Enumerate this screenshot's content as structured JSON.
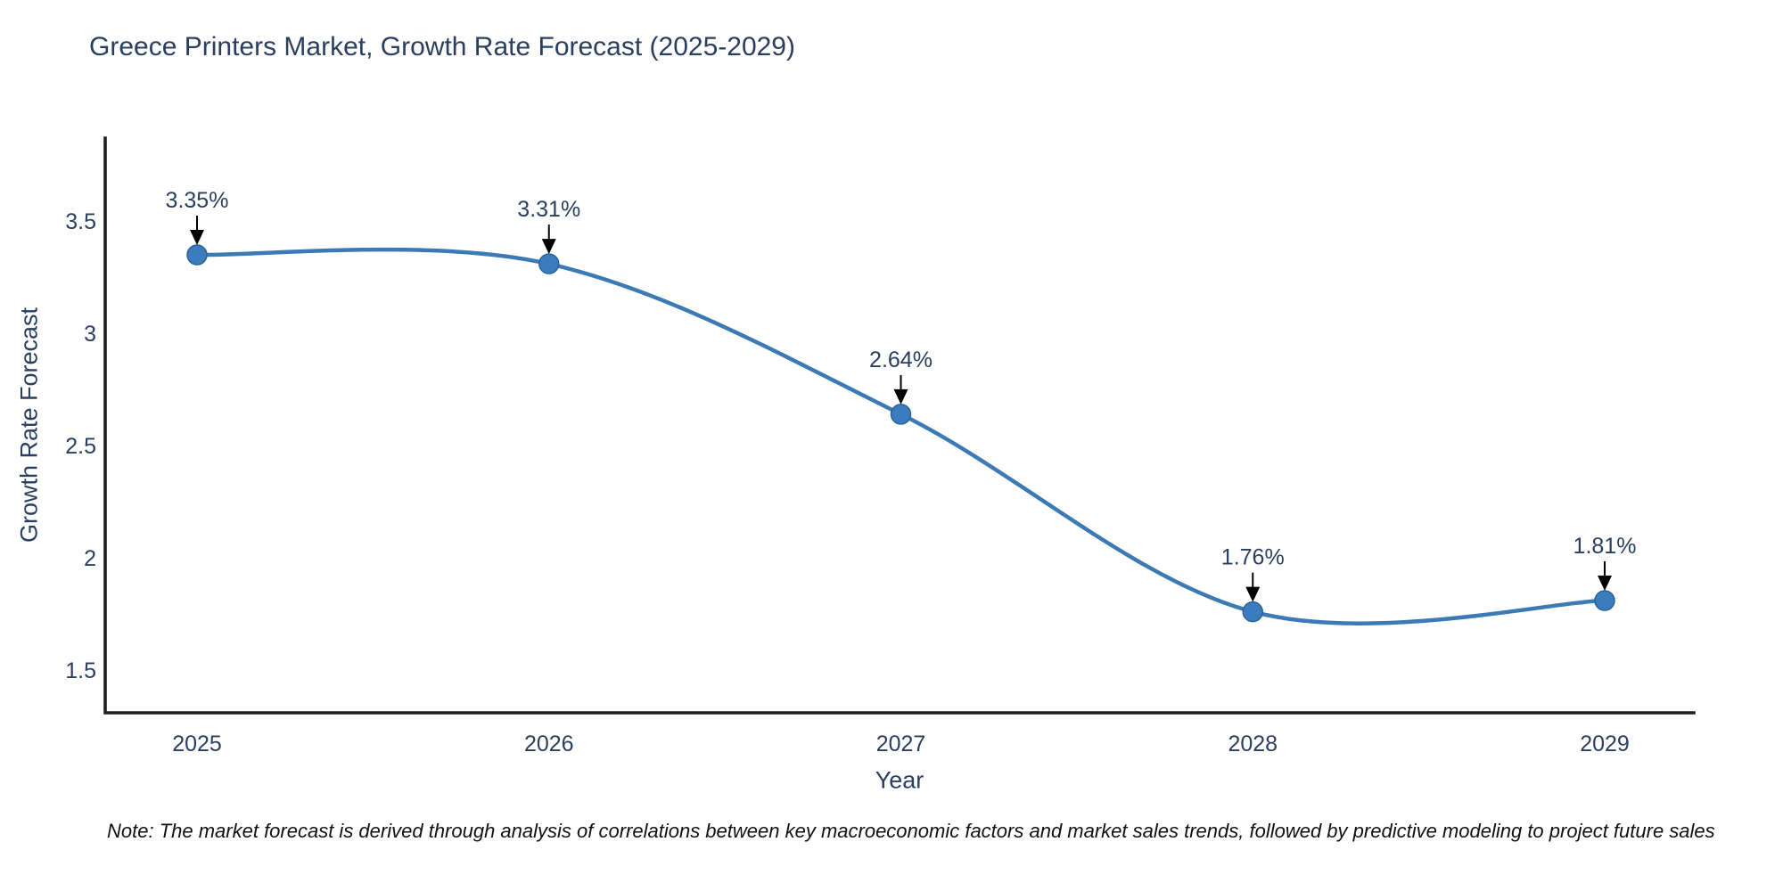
{
  "chart_data": {
    "type": "line",
    "title": "Greece Printers Market, Growth Rate Forecast (2025-2029)",
    "xlabel": "Year",
    "ylabel": "Growth Rate Forecast",
    "x": [
      2025,
      2026,
      2027,
      2028,
      2029
    ],
    "xtick_labels": [
      "2025",
      "2026",
      "2027",
      "2028",
      "2029"
    ],
    "series": [
      {
        "name": "Growth Rate Forecast",
        "values": [
          3.35,
          3.31,
          2.64,
          1.76,
          1.81
        ]
      }
    ],
    "point_labels": [
      "3.35%",
      "3.31%",
      "2.64%",
      "1.76%",
      "1.81%"
    ],
    "ytick_values": [
      3.5,
      3.0,
      2.5,
      2.0,
      1.5
    ],
    "ytick_labels": [
      "3.5",
      "3",
      "2.5",
      "2",
      "1.5"
    ],
    "ylim": [
      1.31,
      3.87
    ],
    "grid": false,
    "legend_position": "none",
    "line_style": "spline",
    "colors": {
      "line": "#3b7ab5",
      "marker_fill": "#3a7cbe",
      "marker_edge": "#2c6394",
      "axis_line": "#1f1f1f",
      "text": "#2a3f5f",
      "arrow": "#000000",
      "note_text": "#111111"
    }
  },
  "note": "Note: The market forecast is derived through analysis of correlations between key macroeconomic factors and market sales trends, followed by predictive modeling to project future sales"
}
